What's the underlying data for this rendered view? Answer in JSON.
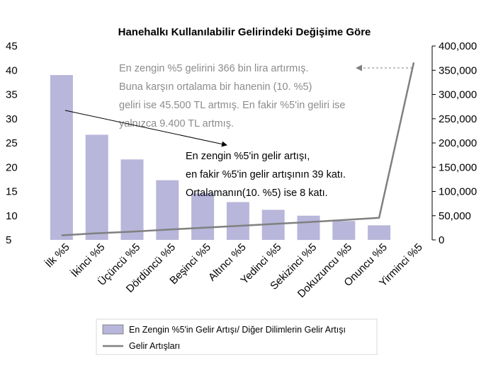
{
  "chart_data": {
    "type": "bar",
    "title": "Hanehalkı Kullanılabilir Gelirindeki Değişime Göre",
    "categories": [
      "İlk %5",
      "İkinci %5",
      "Üçüncü %5",
      "Dördüncü %5",
      "Beşinci %5",
      "Altıncı %5",
      "Yedinci %5",
      "Sekizinci %5",
      "Dokuzuncu %5",
      "Onuncu %5",
      "Yirminci %5"
    ],
    "series": [
      {
        "name": "En Zengin %5'in Gelir Artışı/ Diğer Dilimlerin Gelir Artışı",
        "type": "bar",
        "axis": "left",
        "color": "#b8b6da",
        "values": [
          39,
          26.7,
          21.6,
          17.3,
          14.6,
          12.8,
          11.2,
          10,
          8.9,
          8,
          null
        ]
      },
      {
        "name": "Gelir Artışları",
        "type": "line",
        "axis": "right",
        "color": "#808080",
        "values": [
          9400,
          13700,
          17000,
          21200,
          25000,
          28700,
          32800,
          36600,
          41000,
          45500,
          366000
        ]
      }
    ],
    "y_left": {
      "min": 5,
      "max": 45,
      "ticks": [
        "5",
        "10",
        "15",
        "20",
        "25",
        "30",
        "35",
        "40",
        "45"
      ]
    },
    "y_right": {
      "min": 0,
      "max": 400000,
      "ticks": [
        "0",
        "50,000",
        "100,000",
        "150,000",
        "200,000",
        "250,000",
        "300,000",
        "350,000",
        "400,000"
      ]
    },
    "grid": false,
    "legend_position": "bottom",
    "annotations": [
      {
        "color": "#8c8c8c",
        "lines": [
          "En zengin %5 gelirini 366 bin lira artırmış.",
          "Buna karşın ortalama bir hanenin (10. %5)",
          "geliri ise 45.500 TL artmış. En fakir %5'in geliri ise",
          "yalnızca 9.400 TL artmış."
        ]
      },
      {
        "color": "#000000",
        "lines": [
          "En zengin %5'in gelir artışı,",
          "en fakir %5'in gelir artışının 39 katı.",
          "Ortalamanın(10. %5) ise 8 katı."
        ]
      }
    ]
  }
}
